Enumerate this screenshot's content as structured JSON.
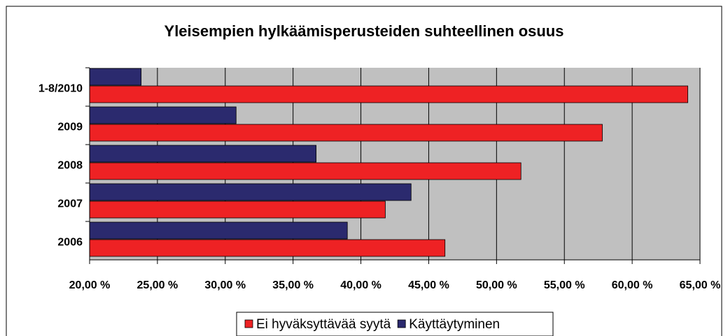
{
  "chart_data": {
    "type": "bar",
    "orientation": "horizontal",
    "title": "Yleisempien hylkäämisperusteiden suhteellinen osuus",
    "categories": [
      "1-8/2010",
      "2009",
      "2008",
      "2007",
      "2006"
    ],
    "series": [
      {
        "name": "Ei hyväksyttävää syytä",
        "color": "#ee2224",
        "values": [
          64.1,
          57.8,
          51.8,
          41.8,
          46.2
        ]
      },
      {
        "name": "Käyttäytyminen",
        "color": "#2b2a6e",
        "values": [
          23.8,
          30.8,
          36.7,
          43.7,
          39.0
        ]
      }
    ],
    "xlim": [
      20,
      65
    ],
    "xticks": [
      {
        "value": 20,
        "label": "20,00 %"
      },
      {
        "value": 25,
        "label": "25,00 %"
      },
      {
        "value": 30,
        "label": "30,00 %"
      },
      {
        "value": 35,
        "label": "35,00 %"
      },
      {
        "value": 40,
        "label": "40,00 %"
      },
      {
        "value": 45,
        "label": "45,00 %"
      },
      {
        "value": 50,
        "label": "50,00 %"
      },
      {
        "value": 55,
        "label": "55,00 %"
      },
      {
        "value": 60,
        "label": "60,00 %"
      },
      {
        "value": 65,
        "label": "65,00 %"
      }
    ],
    "grid": true,
    "legend": "bottom"
  }
}
